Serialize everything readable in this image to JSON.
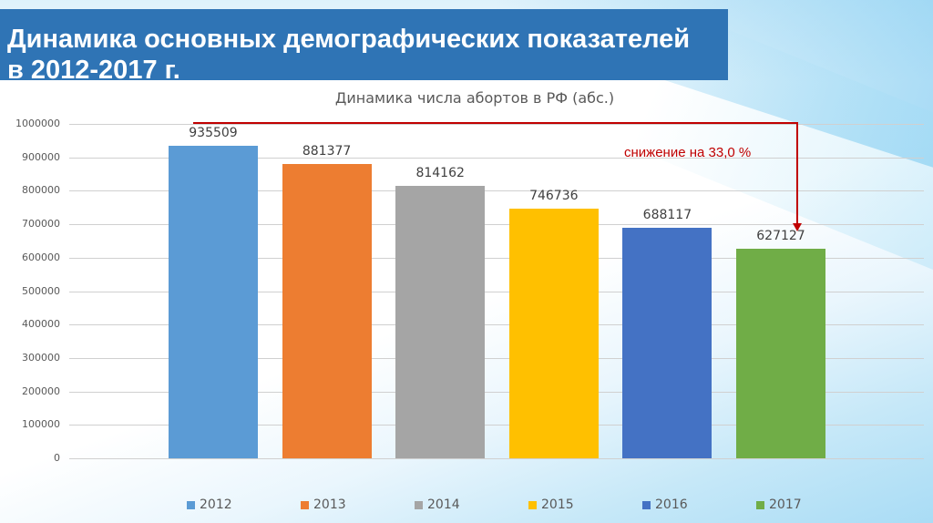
{
  "slide": {
    "title_line1": "Динамика основных демографических показателей",
    "title_line2": "в 2012-2017 г.",
    "title_bg": "#2f74b5"
  },
  "annotation": {
    "text": "снижение на 33,0 %",
    "color": "#c00000"
  },
  "chart_data": {
    "type": "bar",
    "title": "Динамика числа абортов в РФ (абс.)",
    "categories": [
      "2012",
      "2013",
      "2014",
      "2015",
      "2016",
      "2017"
    ],
    "values": [
      935509,
      881377,
      814162,
      746736,
      688117,
      627127
    ],
    "value_labels": [
      "935509",
      "881377",
      "814162",
      "746736",
      "688117",
      "627127"
    ],
    "colors": [
      "#5b9bd5",
      "#ed7d31",
      "#a5a5a5",
      "#ffc000",
      "#4472c4",
      "#70ad47"
    ],
    "xlabel": "",
    "ylabel": "",
    "ylim": [
      0,
      1000000
    ],
    "yticks": [
      "1000000",
      "900000",
      "800000",
      "700000",
      "600000",
      "500000",
      "400000",
      "300000",
      "200000",
      "100000",
      "0"
    ],
    "grid": true,
    "legend_position": "bottom",
    "legend": [
      "2012",
      "2013",
      "2014",
      "2015",
      "2016",
      "2017"
    ],
    "annotation": "снижение на 33,0 %"
  }
}
